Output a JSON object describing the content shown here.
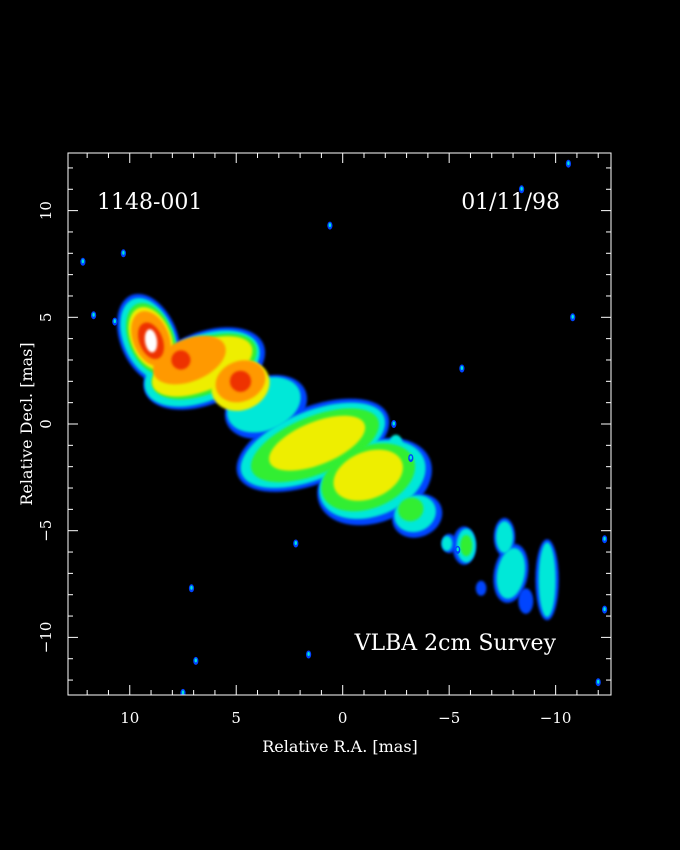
{
  "chart_data": {
    "type": "heatmap",
    "source_label": "1148-001",
    "date_label": "01/11/98",
    "survey_label": "VLBA 2cm Survey",
    "xlabel": "Relative R.A. [mas]",
    "ylabel": "Relative Decl. [mas]",
    "xlim": [
      12.9,
      -12.6
    ],
    "ylim": [
      -12.7,
      12.7
    ],
    "x_ticks": [
      10,
      5,
      0,
      -5,
      -10
    ],
    "y_ticks": [
      10,
      5,
      0,
      -5,
      -10
    ],
    "x_tick_labels": [
      "10",
      "5",
      "0",
      "−5",
      "−10"
    ],
    "y_tick_labels": [
      "10",
      "5",
      "0",
      "−5",
      "−10"
    ],
    "colormap": [
      "#0044ff",
      "#00e8d8",
      "#33ee33",
      "#eeee00",
      "#ff9900",
      "#ee3300",
      "#ffffff"
    ],
    "background_color": "#000000",
    "intensity_levels": [
      1,
      2,
      3,
      4,
      5,
      6,
      7
    ],
    "components": [
      {
        "ra": 9.0,
        "dec": 3.9,
        "peak_level": 7
      },
      {
        "ra": 7.6,
        "dec": 2.9,
        "peak_level": 6
      },
      {
        "ra": 4.8,
        "dec": 2.0,
        "peak_level": 6
      },
      {
        "ra": 1.5,
        "dec": -1.0,
        "peak_level": 4
      },
      {
        "ra": -1.2,
        "dec": -2.4,
        "peak_level": 4
      },
      {
        "ra": -5.8,
        "dec": -5.7,
        "peak_level": 3
      },
      {
        "ra": -7.8,
        "dec": -6.7,
        "peak_level": 2
      },
      {
        "ra": -9.6,
        "dec": -7.2,
        "peak_level": 2
      }
    ],
    "noise_points": [
      [
        11.7,
        5.1
      ],
      [
        10.3,
        8.0
      ],
      [
        12.2,
        7.6
      ],
      [
        10.7,
        4.8
      ],
      [
        0.6,
        9.3
      ],
      [
        -5.6,
        2.6
      ],
      [
        -8.4,
        11.0
      ],
      [
        -10.6,
        12.2
      ],
      [
        -10.8,
        5.0
      ],
      [
        -2.4,
        0.0
      ],
      [
        -3.2,
        -1.6
      ],
      [
        7.1,
        -7.7
      ],
      [
        6.9,
        -11.1
      ],
      [
        7.5,
        -12.6
      ],
      [
        1.6,
        -10.8
      ],
      [
        2.2,
        -5.6
      ],
      [
        -12.3,
        -5.4
      ],
      [
        -12.3,
        -8.7
      ],
      [
        -12.0,
        -12.1
      ],
      [
        -5.4,
        -5.9
      ]
    ]
  }
}
